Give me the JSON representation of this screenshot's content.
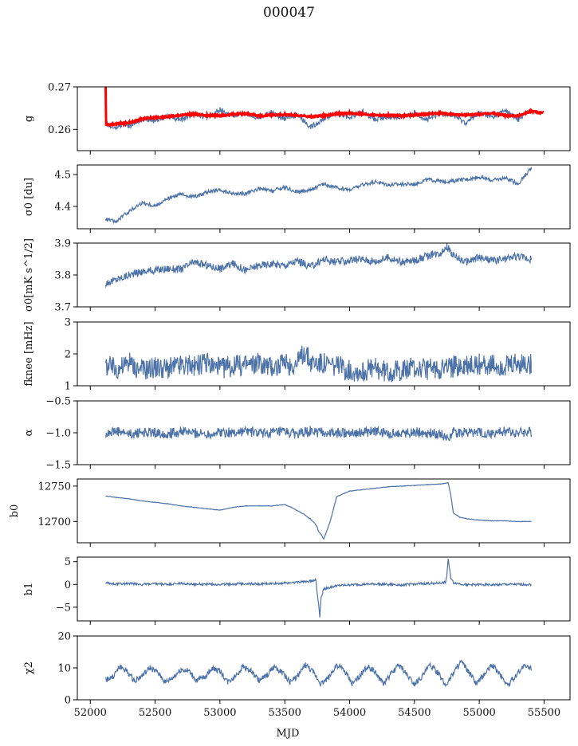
{
  "title": "000047",
  "chart_data": {
    "type": "line",
    "xlabel": "MJD",
    "xlim": [
      51900,
      55700
    ],
    "xticks": [
      52000,
      52500,
      53000,
      53500,
      54000,
      54500,
      55000,
      55500
    ],
    "xtick_labels": [
      "52000",
      "52500",
      "53000",
      "53500",
      "54000",
      "54500",
      "55000",
      "55500"
    ],
    "series_color": "#4c72a8",
    "fit_color": "#ff0000",
    "panels": [
      {
        "name": "g",
        "ylabel": "g",
        "ylim": [
          0.255,
          0.27
        ],
        "yticks": [
          0.26,
          0.27
        ],
        "ytick_labels": [
          "0.26",
          "0.27"
        ],
        "series": [
          {
            "name": "",
            "color": "#4c72a8",
            "x": [
              52120,
              52150,
              52200,
              52250,
              52300,
              52400,
              52500,
              52600,
              52700,
              52800,
              52900,
              53000,
              53100,
              53200,
              53300,
              53400,
              53500,
              53600,
              53700,
              53800,
              53900,
              54000,
              54100,
              54200,
              54300,
              54400,
              54500,
              54600,
              54700,
              54800,
              54900,
              55000,
              55100,
              55200,
              55300,
              55350,
              55400
            ],
            "y": [
              0.262,
              0.2605,
              0.2603,
              0.2612,
              0.2608,
              0.2625,
              0.262,
              0.2632,
              0.2622,
              0.2638,
              0.2628,
              0.2645,
              0.2632,
              0.2638,
              0.2628,
              0.264,
              0.2625,
              0.2635,
              0.2605,
              0.2625,
              0.2638,
              0.2628,
              0.2642,
              0.2622,
              0.263,
              0.2628,
              0.264,
              0.2622,
              0.2638,
              0.2632,
              0.2615,
              0.264,
              0.2628,
              0.2645,
              0.2622,
              0.2638,
              0.2645
            ]
          },
          {
            "name": "",
            "color": "#ff0000",
            "x": [
              52118,
              52122,
              52150,
              52200,
              52300,
              52400,
              52500,
              52600,
              52700,
              52800,
              52900,
              53000,
              53100,
              53200,
              53300,
              53400,
              53500,
              53600,
              53700,
              53800,
              53900,
              54000,
              54100,
              54200,
              54300,
              54400,
              54500,
              54600,
              54700,
              54800,
              54900,
              55000,
              55100,
              55200,
              55300,
              55400,
              55490
            ],
            "y": [
              0.27,
              0.2612,
              0.2612,
              0.2613,
              0.2616,
              0.2625,
              0.2628,
              0.263,
              0.2634,
              0.2636,
              0.2633,
              0.2632,
              0.2635,
              0.2637,
              0.2632,
              0.2634,
              0.2635,
              0.2633,
              0.263,
              0.2632,
              0.2637,
              0.2638,
              0.2636,
              0.2634,
              0.2633,
              0.2632,
              0.2634,
              0.2636,
              0.2638,
              0.2635,
              0.2634,
              0.2635,
              0.2638,
              0.2633,
              0.2632,
              0.2643,
              0.2638
            ]
          }
        ]
      },
      {
        "name": "sigma0-du",
        "ylabel": "σ0 [du]",
        "ylim": [
          4.33,
          4.53
        ],
        "yticks": [
          4.4,
          4.5
        ],
        "ytick_labels": [
          "4.4",
          "4.5"
        ],
        "series": [
          {
            "name": "",
            "color": "#4c72a8",
            "x": [
              52120,
              52200,
              52300,
              52400,
              52500,
              52600,
              52700,
              52800,
              52900,
              53000,
              53100,
              53200,
              53300,
              53400,
              53500,
              53600,
              53700,
              53800,
              53900,
              54000,
              54100,
              54200,
              54300,
              54400,
              54500,
              54600,
              54700,
              54800,
              54900,
              55000,
              55100,
              55200,
              55300,
              55350,
              55400
            ],
            "y": [
              4.36,
              4.352,
              4.385,
              4.412,
              4.402,
              4.425,
              4.438,
              4.43,
              4.445,
              4.45,
              4.44,
              4.44,
              4.455,
              4.448,
              4.46,
              4.445,
              4.452,
              4.47,
              4.458,
              4.452,
              4.468,
              4.478,
              4.468,
              4.47,
              4.47,
              4.485,
              4.478,
              4.48,
              4.485,
              4.492,
              4.482,
              4.49,
              4.47,
              4.495,
              4.52
            ]
          }
        ]
      },
      {
        "name": "sigma0-mks",
        "ylabel": "σ0[mK s^1/2]",
        "ylim": [
          3.7,
          3.9
        ],
        "yticks": [
          3.7,
          3.8,
          3.9
        ],
        "ytick_labels": [
          "3.7",
          "3.8",
          "3.9"
        ],
        "series": [
          {
            "name": "",
            "color": "#4c72a8",
            "x": [
              52120,
              52200,
              52300,
              52400,
              52500,
              52600,
              52700,
              52800,
              52900,
              53000,
              53100,
              53200,
              53300,
              53400,
              53500,
              53600,
              53700,
              53800,
              53900,
              54000,
              54100,
              54200,
              54300,
              54400,
              54500,
              54600,
              54700,
              54750,
              54800,
              54900,
              55000,
              55100,
              55200,
              55300,
              55400
            ],
            "y": [
              3.775,
              3.785,
              3.8,
              3.81,
              3.815,
              3.82,
              3.818,
              3.84,
              3.83,
              3.82,
              3.835,
              3.815,
              3.83,
              3.835,
              3.83,
              3.845,
              3.825,
              3.85,
              3.84,
              3.845,
              3.85,
              3.842,
              3.855,
              3.84,
              3.845,
              3.86,
              3.87,
              3.89,
              3.86,
              3.84,
              3.855,
              3.845,
              3.85,
              3.86,
              3.85
            ]
          }
        ]
      },
      {
        "name": "fknee",
        "ylabel": "fknee [mHz]",
        "ylim": [
          1,
          3
        ],
        "yticks": [
          1,
          2,
          3
        ],
        "ytick_labels": [
          "1",
          "2",
          "3"
        ],
        "series": [
          {
            "name": "",
            "color": "#4c72a8",
            "x": [
              52120,
              52200,
              52300,
              52400,
              52500,
              52600,
              52700,
              52800,
              52900,
              53000,
              53100,
              53200,
              53300,
              53400,
              53500,
              53600,
              53650,
              53700,
              53800,
              53900,
              54000,
              54100,
              54200,
              54300,
              54400,
              54500,
              54600,
              54700,
              54800,
              54900,
              55000,
              55100,
              55200,
              55300,
              55400
            ],
            "y": [
              1.65,
              1.55,
              1.7,
              1.5,
              1.6,
              1.55,
              1.65,
              1.6,
              1.7,
              1.55,
              1.6,
              1.65,
              1.7,
              1.6,
              1.65,
              1.7,
              2.1,
              1.75,
              1.7,
              1.6,
              1.5,
              1.45,
              1.55,
              1.45,
              1.5,
              1.55,
              1.5,
              1.55,
              1.6,
              1.6,
              1.7,
              1.65,
              1.6,
              1.7,
              1.65
            ]
          }
        ]
      },
      {
        "name": "alpha",
        "ylabel": "α",
        "ylim": [
          -1.5,
          -0.5
        ],
        "yticks": [
          -1.5,
          -1.0,
          -0.5
        ],
        "ytick_labels": [
          "−1.5",
          "−1.0",
          "−0.5"
        ],
        "series": [
          {
            "name": "",
            "color": "#4c72a8",
            "x": [
              52120,
              52200,
              52300,
              52400,
              52500,
              52600,
              52700,
              52800,
              52900,
              53000,
              53100,
              53200,
              53300,
              53400,
              53500,
              53600,
              53700,
              53800,
              53900,
              54000,
              54100,
              54200,
              54300,
              54400,
              54500,
              54600,
              54700,
              54750,
              54800,
              54900,
              55000,
              55100,
              55200,
              55300,
              55400
            ],
            "y": [
              -1.0,
              -0.98,
              -1.02,
              -0.99,
              -1.0,
              -1.01,
              -0.98,
              -1.0,
              -1.02,
              -0.99,
              -1.0,
              -0.97,
              -1.01,
              -1.0,
              -0.99,
              -1.02,
              -0.98,
              -1.0,
              -1.01,
              -0.99,
              -1.0,
              -0.98,
              -1.02,
              -1.0,
              -0.99,
              -1.01,
              -1.02,
              -1.08,
              -1.0,
              -0.99,
              -1.0,
              -1.02,
              -0.98,
              -1.0,
              -0.99
            ]
          }
        ]
      },
      {
        "name": "b0",
        "ylabel": "b0",
        "ylim": [
          12670,
          12760
        ],
        "yticks": [
          12700,
          12750
        ],
        "ytick_labels": [
          "12700",
          "12750"
        ],
        "series": [
          {
            "name": "",
            "color": "#4c72a8",
            "x": [
              52120,
              52200,
              52300,
              52400,
              52500,
              52600,
              52700,
              52800,
              52900,
              53000,
              53100,
              53200,
              53300,
              53400,
              53450,
              53500,
              53550,
              53600,
              53650,
              53700,
              53730,
              53750,
              53760,
              53780,
              53800,
              53850,
              53900,
              54000,
              54100,
              54200,
              54300,
              54400,
              54500,
              54600,
              54700,
              54740,
              54760,
              54780,
              54800,
              54850,
              54900,
              55000,
              55100,
              55200,
              55300,
              55400
            ],
            "y": [
              12736,
              12734,
              12732,
              12729,
              12727,
              12725,
              12722,
              12720,
              12718,
              12716,
              12720,
              12722,
              12722,
              12722,
              12723,
              12724,
              12720,
              12715,
              12710,
              12703,
              12698,
              12692,
              12686,
              12682,
              12675,
              12700,
              12735,
              12743,
              12745,
              12747,
              12749,
              12750,
              12751,
              12752,
              12753,
              12754,
              12755,
              12738,
              12712,
              12706,
              12704,
              12702,
              12701,
              12701,
              12700,
              12700
            ]
          }
        ]
      },
      {
        "name": "b1",
        "ylabel": "b1",
        "ylim": [
          -8,
          6
        ],
        "yticks": [
          -5,
          0,
          5
        ],
        "ytick_labels": [
          "−5",
          "0",
          "5"
        ],
        "series": [
          {
            "name": "",
            "color": "#4c72a8",
            "x": [
              52120,
              52200,
              52300,
              52400,
              52500,
              52600,
              52700,
              52800,
              52900,
              53000,
              53100,
              53200,
              53300,
              53400,
              53500,
              53600,
              53700,
              53740,
              53750,
              53760,
              53770,
              53780,
              53800,
              53900,
              54000,
              54100,
              54200,
              54300,
              54400,
              54500,
              54600,
              54700,
              54740,
              54750,
              54760,
              54780,
              54800,
              54900,
              55000,
              55100,
              55200,
              55300,
              55400
            ],
            "y": [
              0.3,
              0.1,
              0.2,
              0.0,
              0.1,
              0.0,
              0.2,
              0.0,
              0.1,
              0.0,
              0.1,
              0.2,
              0.1,
              0.2,
              0.3,
              0.5,
              0.8,
              1.0,
              -2.0,
              -4.0,
              -7.0,
              -3.0,
              -1.0,
              -0.3,
              -0.1,
              0.0,
              0.1,
              0.0,
              -0.1,
              0.1,
              0.2,
              0.3,
              0.5,
              2.0,
              5.5,
              1.5,
              0.4,
              -0.1,
              0.0,
              -0.1,
              0.0,
              0.0,
              0.0
            ]
          }
        ]
      },
      {
        "name": "chi2",
        "ylabel": "χ2",
        "ylim": [
          0,
          20
        ],
        "yticks": [
          0,
          10,
          20
        ],
        "ytick_labels": [
          "0",
          "10",
          "20"
        ],
        "series": [
          {
            "name": "",
            "color": "#4c72a8",
            "x": [
              52120,
              52170,
              52230,
              52280,
              52340,
              52400,
              52460,
              52520,
              52580,
              52640,
              52700,
              52760,
              52820,
              52880,
              52940,
              53000,
              53060,
              53120,
              53180,
              53240,
              53300,
              53360,
              53420,
              53480,
              53540,
              53600,
              53660,
              53720,
              53780,
              53840,
              53900,
              53960,
              54020,
              54080,
              54140,
              54200,
              54260,
              54320,
              54380,
              54440,
              54500,
              54560,
              54620,
              54680,
              54740,
              54800,
              54860,
              54920,
              54980,
              55040,
              55100,
              55160,
              55220,
              55280,
              55340,
              55400
            ],
            "y": [
              6.5,
              7.0,
              10.5,
              9.0,
              6.0,
              7.5,
              10.0,
              8.5,
              5.5,
              7.0,
              9.5,
              9.0,
              6.0,
              7.0,
              10.0,
              9.0,
              5.5,
              7.5,
              10.5,
              9.0,
              6.0,
              7.5,
              10.5,
              8.5,
              5.5,
              7.5,
              11.0,
              8.5,
              5.0,
              7.0,
              11.0,
              9.0,
              5.0,
              7.5,
              10.5,
              8.5,
              5.0,
              8.0,
              11.0,
              8.0,
              5.0,
              7.5,
              11.0,
              8.5,
              4.5,
              8.5,
              12.0,
              8.5,
              5.0,
              8.0,
              11.0,
              8.0,
              4.5,
              7.5,
              10.5,
              10.0
            ]
          }
        ]
      }
    ]
  }
}
